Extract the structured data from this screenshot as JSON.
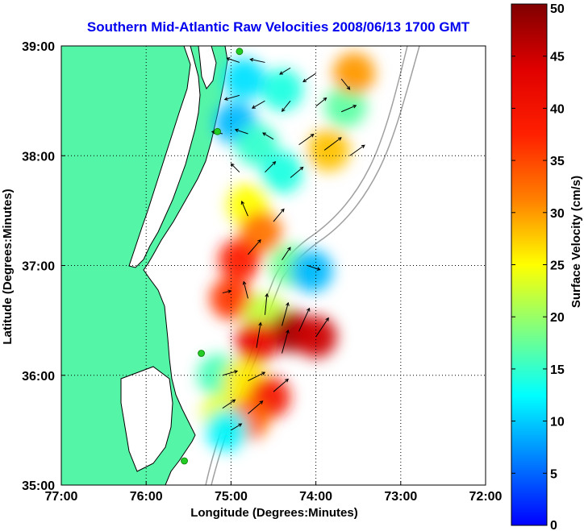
{
  "title": "Southern Mid-Atlantic Raw Velocities 2008/06/13 1700 GMT",
  "colors": {
    "title": "#0000ee",
    "land": "#55f5a8",
    "water": "#ffffff",
    "grid": "#000000",
    "bathymetry": "#a0a0a0",
    "station": "#22cc22"
  },
  "axes": {
    "xlabel": "Longitude (Degrees:Minutes)",
    "ylabel": "Latitude (Degrees:Minutes)",
    "x_ticks": [
      "77:00",
      "76:00",
      "75:00",
      "74:00",
      "73:00",
      "72:00"
    ],
    "y_ticks": [
      "39:00",
      "38:00",
      "37:00",
      "36:00",
      "35:00"
    ],
    "xlim": [
      -77,
      -72
    ],
    "ylim": [
      35,
      39
    ],
    "grid": "dotted"
  },
  "colorbar": {
    "label": "Surface Velocity (cm/s)",
    "ticks": [
      "50",
      "45",
      "40",
      "35",
      "30",
      "25",
      "20",
      "15",
      "10",
      "5",
      "0"
    ],
    "range": [
      0,
      50
    ],
    "colormap": "jet"
  },
  "stations": [
    {
      "lon": -74.9,
      "lat": 38.95
    },
    {
      "lon": -75.16,
      "lat": 38.22
    },
    {
      "lon": -75.35,
      "lat": 36.2
    },
    {
      "lon": -75.55,
      "lat": 35.22
    }
  ],
  "speed_patches": [
    {
      "lon": -74.4,
      "lat": 38.6,
      "speed": 14
    },
    {
      "lon": -74.85,
      "lat": 38.7,
      "speed": 11
    },
    {
      "lon": -74.95,
      "lat": 38.3,
      "speed": 9
    },
    {
      "lon": -74.7,
      "lat": 38.1,
      "speed": 15
    },
    {
      "lon": -73.85,
      "lat": 38.05,
      "speed": 28
    },
    {
      "lon": -73.65,
      "lat": 38.45,
      "speed": 17
    },
    {
      "lon": -73.55,
      "lat": 38.75,
      "speed": 30
    },
    {
      "lon": -74.4,
      "lat": 37.85,
      "speed": 14
    },
    {
      "lon": -74.8,
      "lat": 37.55,
      "speed": 25
    },
    {
      "lon": -74.65,
      "lat": 37.3,
      "speed": 32
    },
    {
      "lon": -74.9,
      "lat": 37.05,
      "speed": 38
    },
    {
      "lon": -74.3,
      "lat": 37.0,
      "speed": 18
    },
    {
      "lon": -74.05,
      "lat": 36.95,
      "speed": 9
    },
    {
      "lon": -75.0,
      "lat": 36.7,
      "speed": 36
    },
    {
      "lon": -74.6,
      "lat": 36.55,
      "speed": 22
    },
    {
      "lon": -74.3,
      "lat": 36.4,
      "speed": 48
    },
    {
      "lon": -74.0,
      "lat": 36.35,
      "speed": 45
    },
    {
      "lon": -74.7,
      "lat": 36.3,
      "speed": 42
    },
    {
      "lon": -75.15,
      "lat": 36.0,
      "speed": 16
    },
    {
      "lon": -74.85,
      "lat": 35.95,
      "speed": 26
    },
    {
      "lon": -74.55,
      "lat": 35.8,
      "speed": 40
    },
    {
      "lon": -75.1,
      "lat": 35.65,
      "speed": 24
    },
    {
      "lon": -74.8,
      "lat": 35.6,
      "speed": 33
    },
    {
      "lon": -75.05,
      "lat": 35.5,
      "speed": 12
    }
  ],
  "current_vectors": [
    {
      "lon": -74.9,
      "lat": 38.85,
      "u": -12,
      "v": 4
    },
    {
      "lon": -74.6,
      "lat": 38.85,
      "u": -14,
      "v": 3
    },
    {
      "lon": -74.3,
      "lat": 38.8,
      "u": -10,
      "v": -6
    },
    {
      "lon": -74.0,
      "lat": 38.75,
      "u": -12,
      "v": -8
    },
    {
      "lon": -73.7,
      "lat": 38.7,
      "u": 8,
      "v": -10
    },
    {
      "lon": -74.9,
      "lat": 38.55,
      "u": -14,
      "v": -4
    },
    {
      "lon": -74.6,
      "lat": 38.5,
      "u": -12,
      "v": -7
    },
    {
      "lon": -74.3,
      "lat": 38.5,
      "u": -8,
      "v": -10
    },
    {
      "lon": -74.0,
      "lat": 38.45,
      "u": 10,
      "v": 8
    },
    {
      "lon": -73.7,
      "lat": 38.4,
      "u": 14,
      "v": 6
    },
    {
      "lon": -75.1,
      "lat": 38.2,
      "u": -10,
      "v": 2
    },
    {
      "lon": -74.8,
      "lat": 38.2,
      "u": -12,
      "v": 4
    },
    {
      "lon": -74.5,
      "lat": 38.15,
      "u": -10,
      "v": 6
    },
    {
      "lon": -74.2,
      "lat": 38.1,
      "u": 14,
      "v": 10
    },
    {
      "lon": -73.9,
      "lat": 38.05,
      "u": 16,
      "v": 12
    },
    {
      "lon": -73.6,
      "lat": 38.0,
      "u": 14,
      "v": 10
    },
    {
      "lon": -74.9,
      "lat": 37.85,
      "u": -8,
      "v": 8
    },
    {
      "lon": -74.6,
      "lat": 37.85,
      "u": 10,
      "v": 10
    },
    {
      "lon": -74.3,
      "lat": 37.8,
      "u": 12,
      "v": 10
    },
    {
      "lon": -74.8,
      "lat": 37.45,
      "u": -6,
      "v": 14
    },
    {
      "lon": -74.5,
      "lat": 37.4,
      "u": 10,
      "v": 12
    },
    {
      "lon": -74.8,
      "lat": 37.1,
      "u": 12,
      "v": 14
    },
    {
      "lon": -74.4,
      "lat": 37.05,
      "u": 8,
      "v": 12
    },
    {
      "lon": -74.1,
      "lat": 37.0,
      "u": 12,
      "v": -4
    },
    {
      "lon": -75.1,
      "lat": 36.75,
      "u": 8,
      "v": 2
    },
    {
      "lon": -74.8,
      "lat": 36.7,
      "u": -4,
      "v": 16
    },
    {
      "lon": -74.6,
      "lat": 36.55,
      "u": 2,
      "v": 20
    },
    {
      "lon": -74.4,
      "lat": 36.45,
      "u": 6,
      "v": 22
    },
    {
      "lon": -74.2,
      "lat": 36.4,
      "u": 10,
      "v": 22
    },
    {
      "lon": -74.0,
      "lat": 36.35,
      "u": 12,
      "v": 18
    },
    {
      "lon": -74.7,
      "lat": 36.25,
      "u": 4,
      "v": 24
    },
    {
      "lon": -74.4,
      "lat": 36.2,
      "u": 6,
      "v": 22
    },
    {
      "lon": -75.1,
      "lat": 36.0,
      "u": 14,
      "v": 4
    },
    {
      "lon": -74.8,
      "lat": 35.95,
      "u": 16,
      "v": 8
    },
    {
      "lon": -74.5,
      "lat": 35.85,
      "u": 14,
      "v": 12
    },
    {
      "lon": -75.1,
      "lat": 35.7,
      "u": 12,
      "v": 8
    },
    {
      "lon": -74.8,
      "lat": 35.65,
      "u": 14,
      "v": 12
    },
    {
      "lon": -75.0,
      "lat": 35.5,
      "u": 10,
      "v": 6
    }
  ]
}
